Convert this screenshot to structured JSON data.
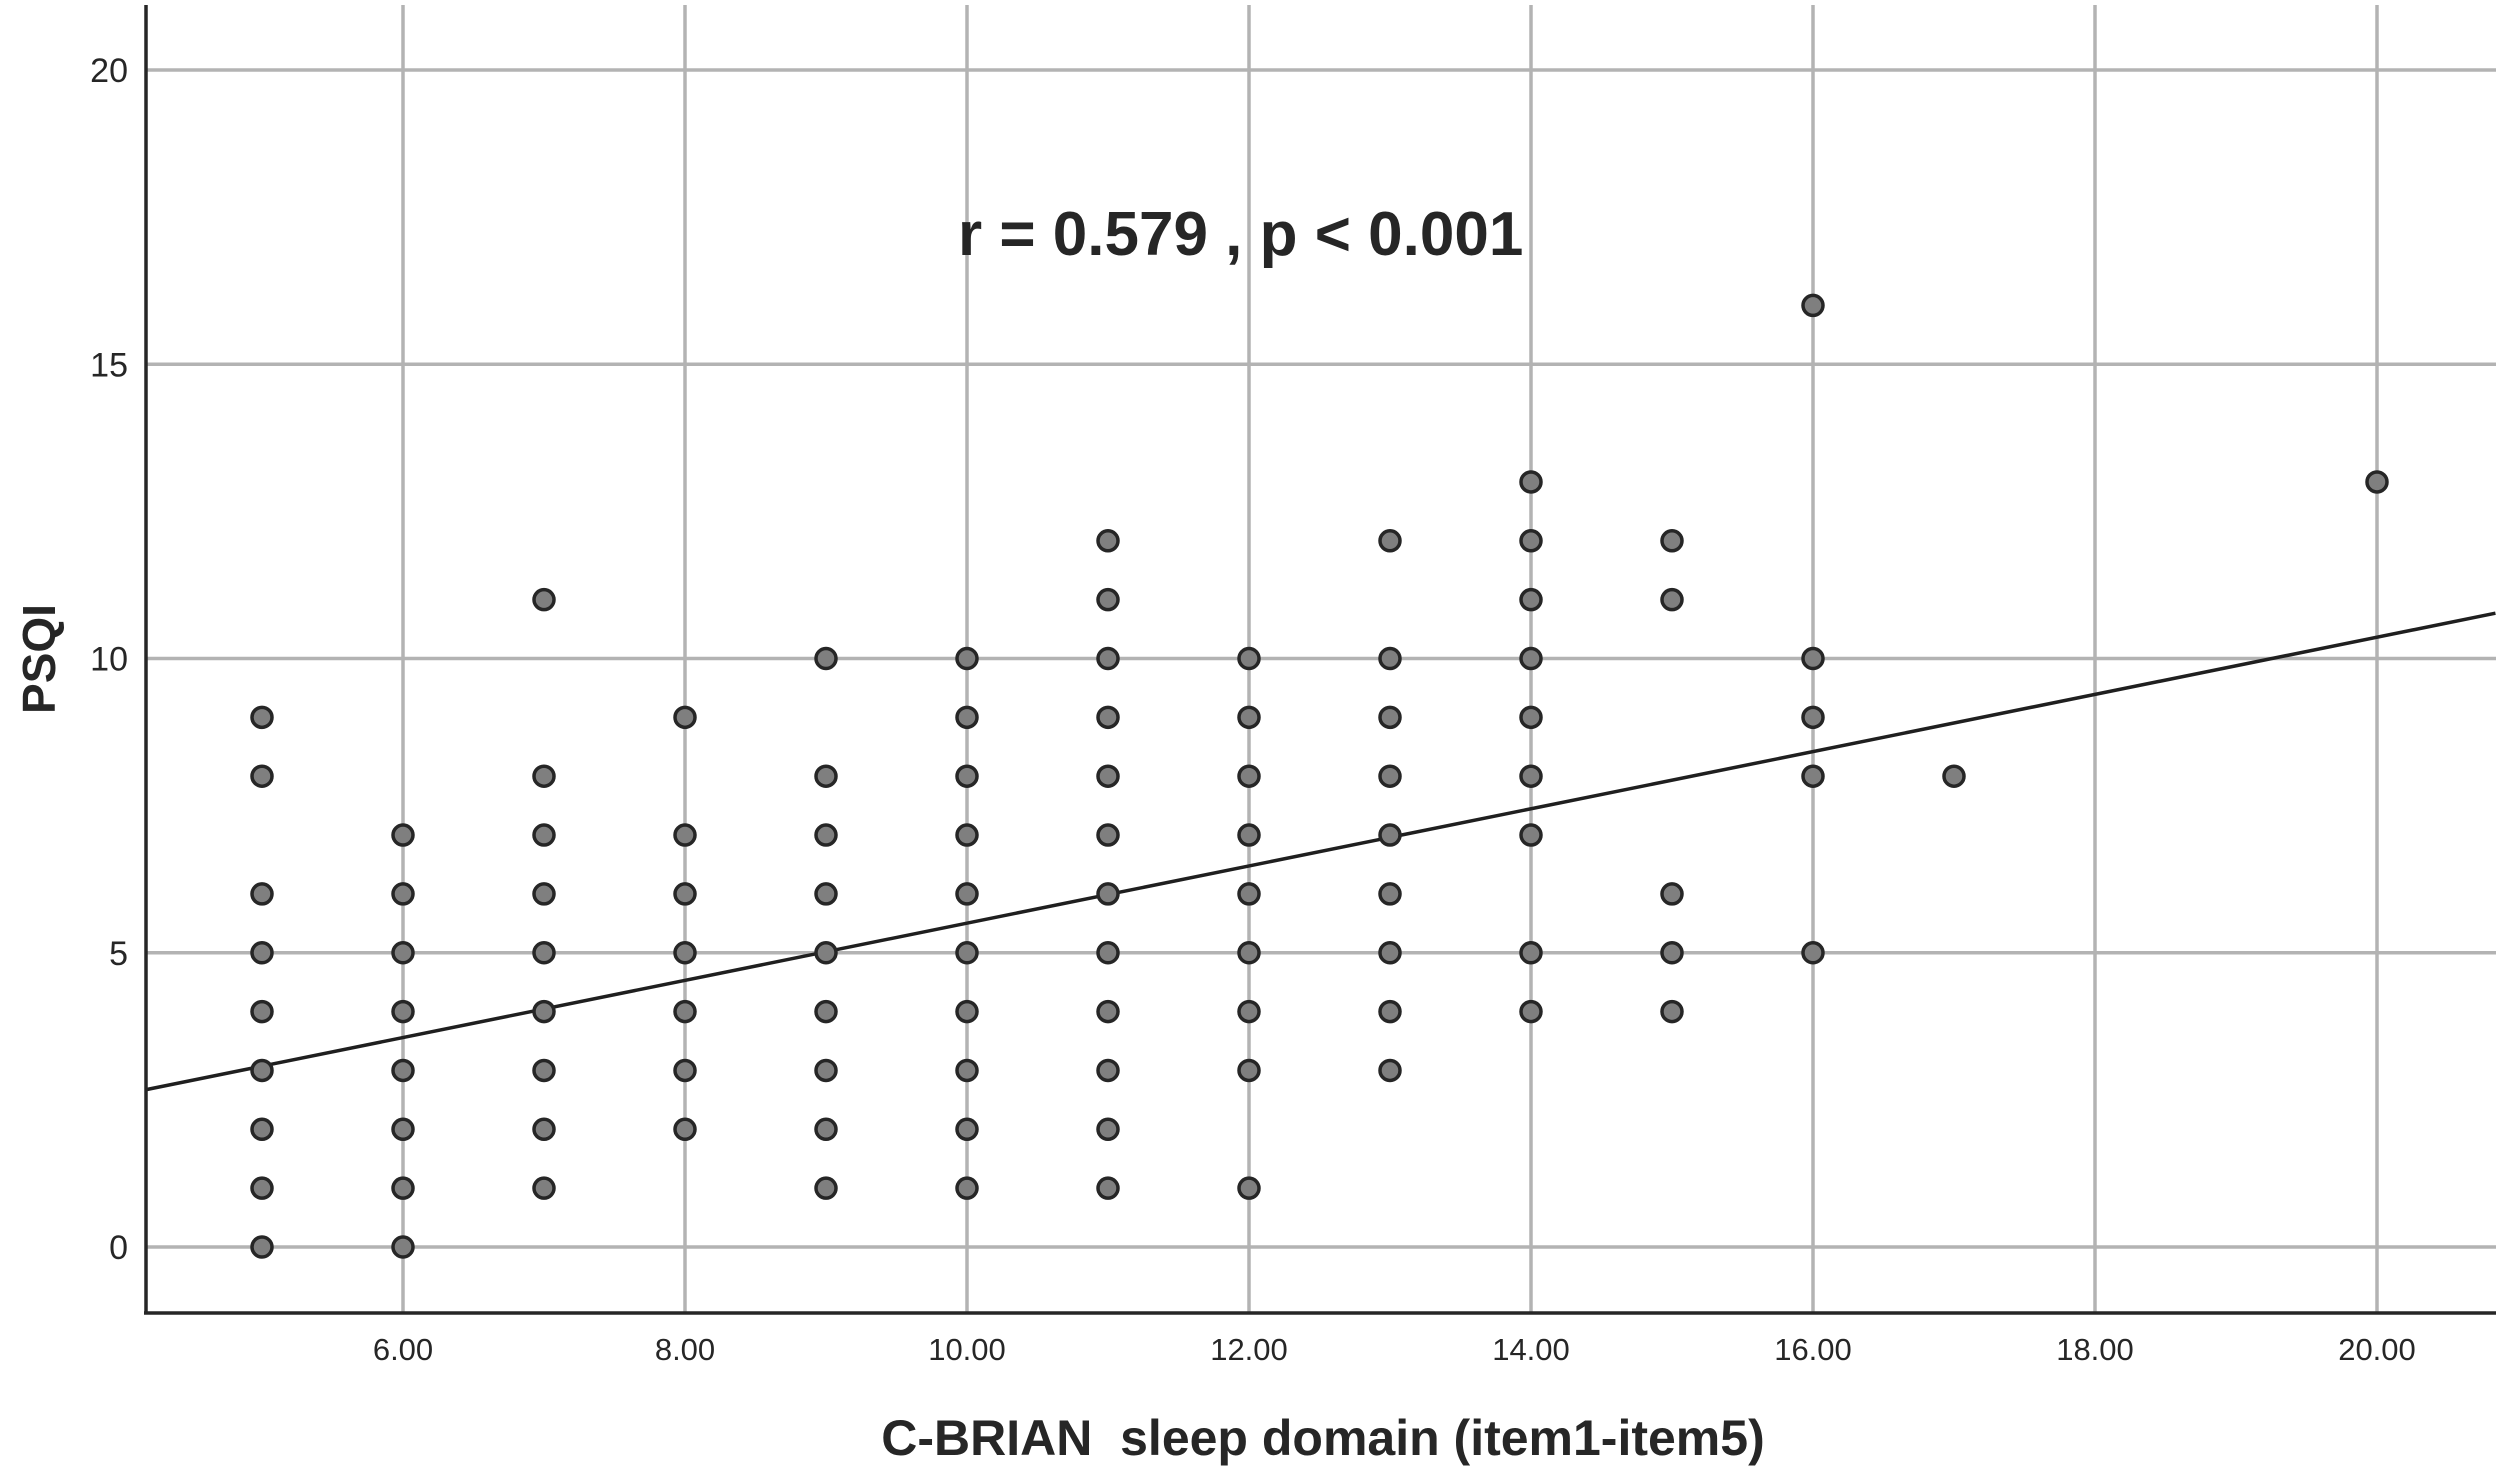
{
  "chart_data": {
    "type": "scatter",
    "title": "",
    "xlabel": "C-BRIAN  sleep domain (item1-item5)",
    "ylabel": "PSQI",
    "annotation": "r = 0.579 , p < 0.001",
    "xlim": [
      4.17,
      20.84
    ],
    "ylim": [
      -1.12,
      20.9
    ],
    "x_ticks": [
      6,
      8,
      10,
      12,
      14,
      16,
      18,
      20
    ],
    "x_tick_labels": [
      "6.00",
      "8.00",
      "10.00",
      "12.00",
      "14.00",
      "16.00",
      "18.00",
      "20.00"
    ],
    "y_ticks": [
      0,
      5,
      10,
      15,
      20
    ],
    "y_tick_labels": [
      "0",
      "5",
      "10",
      "15",
      "20"
    ],
    "grid": true,
    "legend": null,
    "marker": {
      "shape": "circle",
      "fill": "#7f7f7f",
      "stroke": "#262626"
    },
    "fit_line": {
      "type": "linear",
      "x": [
        4.17,
        20.84
      ],
      "y": [
        2.67,
        10.77
      ],
      "color": "#1f1f1f"
    },
    "points_by_x": [
      {
        "x": 5,
        "y": [
          0,
          1,
          2,
          3,
          4,
          5,
          6,
          8,
          9
        ]
      },
      {
        "x": 6,
        "y": [
          0,
          1,
          2,
          3,
          4,
          5,
          6,
          7
        ]
      },
      {
        "x": 7,
        "y": [
          1,
          2,
          3,
          4,
          5,
          6,
          7,
          8,
          11
        ]
      },
      {
        "x": 8,
        "y": [
          2,
          3,
          4,
          5,
          6,
          7,
          9
        ]
      },
      {
        "x": 9,
        "y": [
          1,
          2,
          3,
          4,
          5,
          6,
          7,
          8,
          10
        ]
      },
      {
        "x": 10,
        "y": [
          1,
          2,
          3,
          4,
          5,
          6,
          7,
          8,
          9,
          10
        ]
      },
      {
        "x": 11,
        "y": [
          1,
          2,
          3,
          4,
          5,
          6,
          7,
          8,
          9,
          10,
          11,
          12
        ]
      },
      {
        "x": 12,
        "y": [
          1,
          3,
          4,
          5,
          6,
          7,
          8,
          9,
          10
        ]
      },
      {
        "x": 13,
        "y": [
          3,
          4,
          5,
          6,
          7,
          8,
          9,
          10,
          12
        ]
      },
      {
        "x": 14,
        "y": [
          4,
          5,
          7,
          8,
          9,
          10,
          11,
          12,
          13
        ]
      },
      {
        "x": 15,
        "y": [
          4,
          5,
          6,
          11,
          12
        ]
      },
      {
        "x": 16,
        "y": [
          5,
          8,
          9,
          10,
          16
        ]
      },
      {
        "x": 17,
        "y": [
          8
        ]
      },
      {
        "x": 20,
        "y": [
          13
        ]
      }
    ]
  }
}
